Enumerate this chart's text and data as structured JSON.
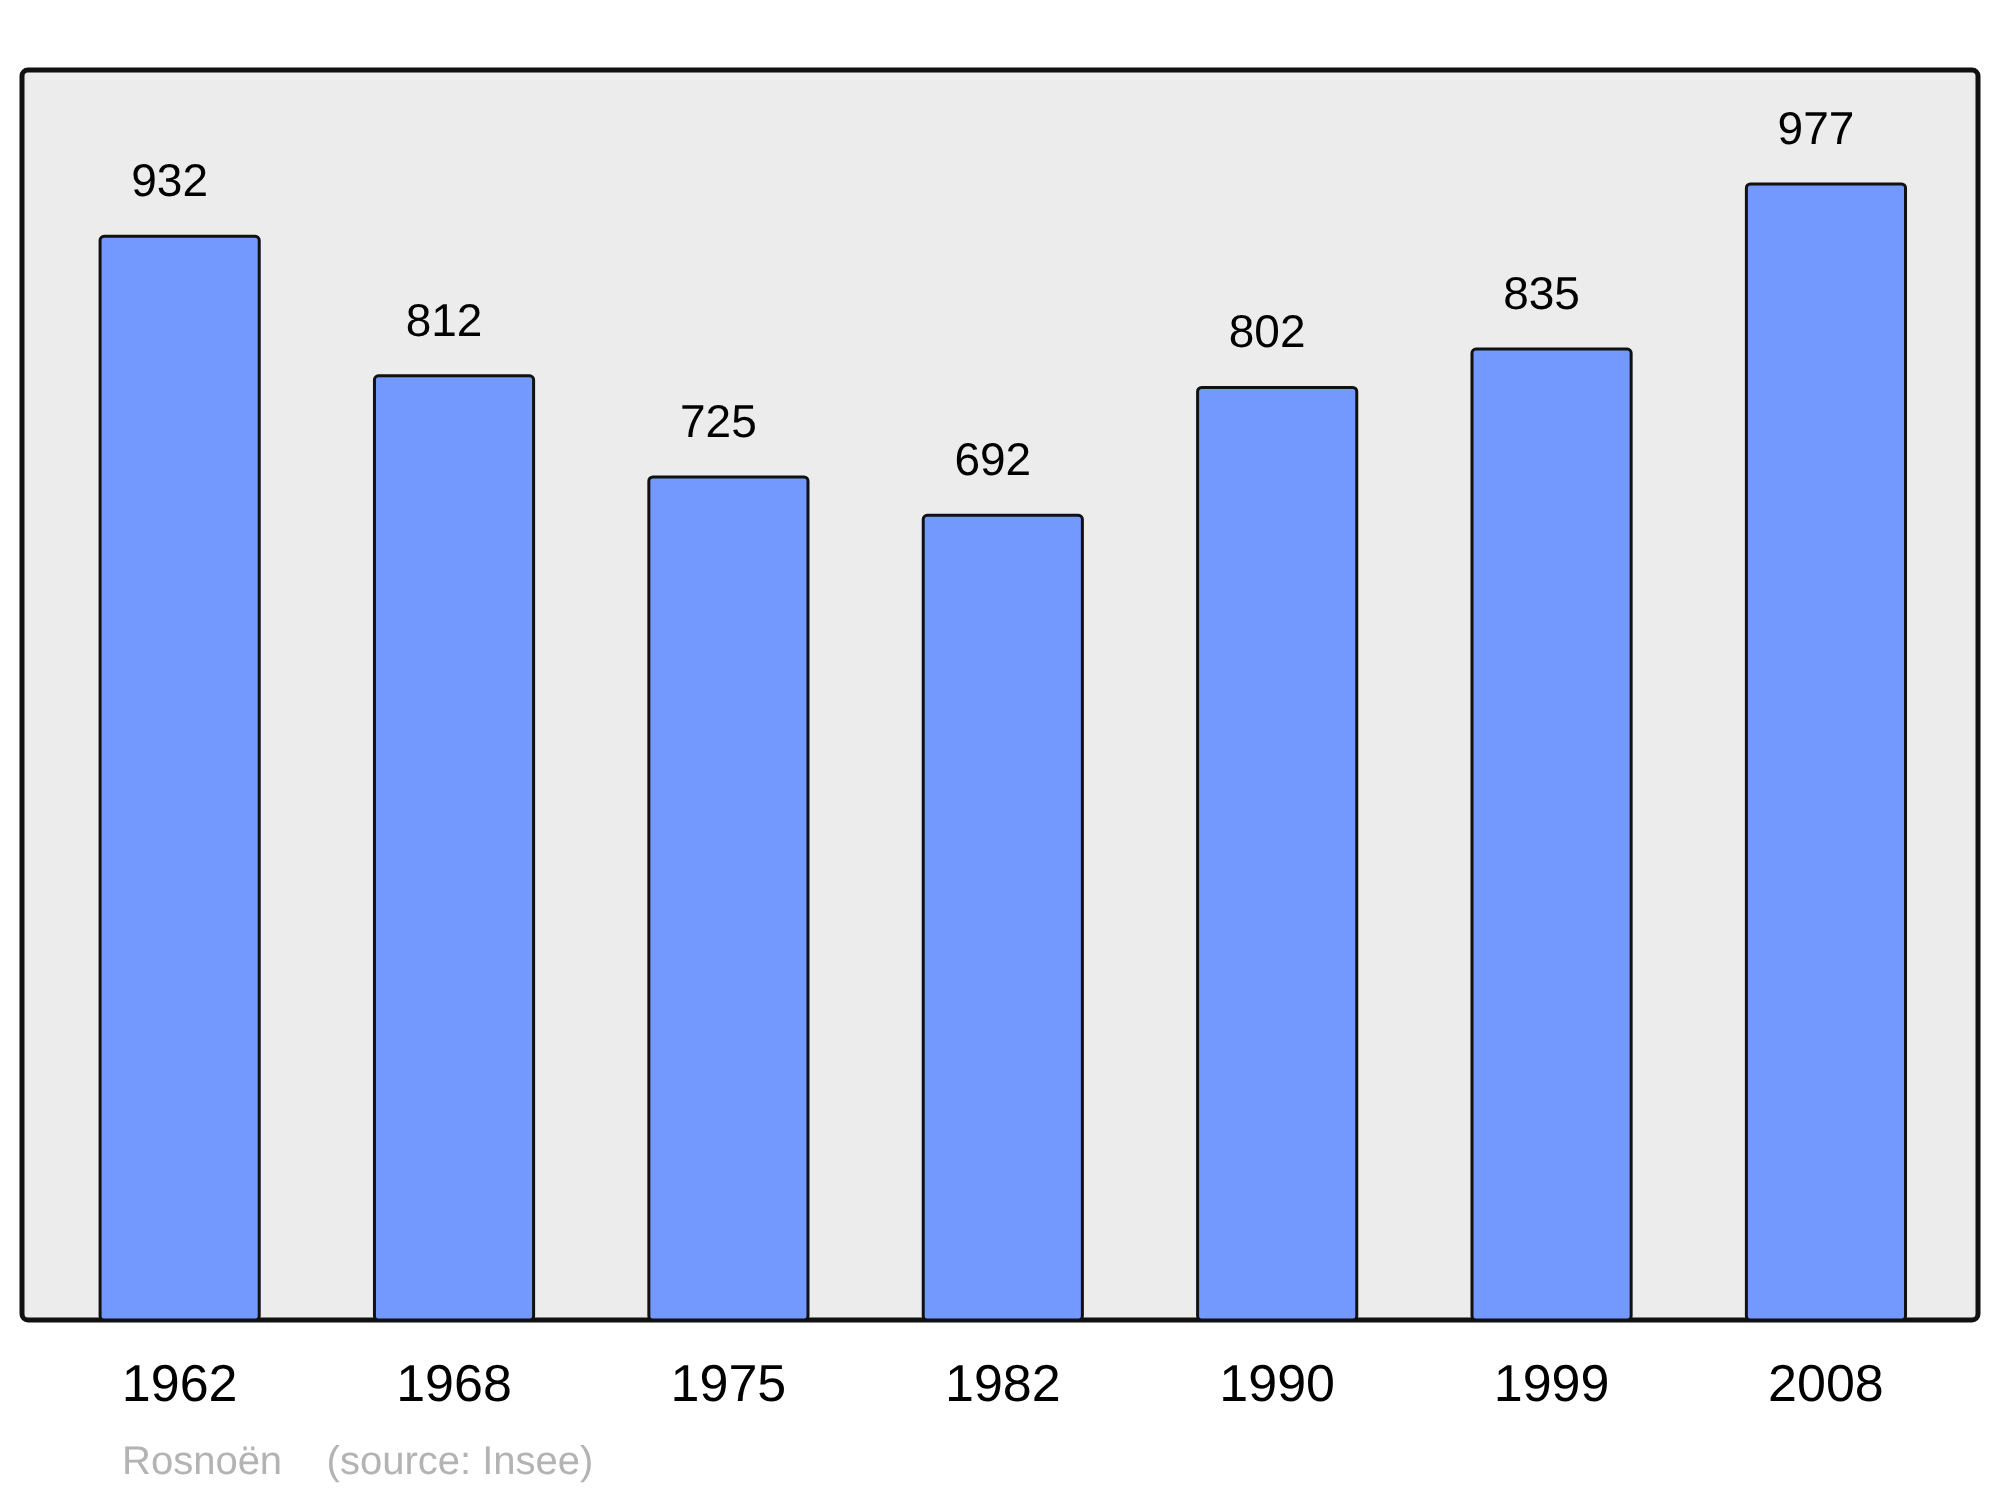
{
  "chart_data": {
    "type": "bar",
    "categories": [
      "1962",
      "1968",
      "1975",
      "1982",
      "1990",
      "1999",
      "2008"
    ],
    "values": [
      932,
      812,
      725,
      692,
      802,
      835,
      977
    ],
    "color": "#7399ff",
    "ylim": [
      0,
      1075
    ],
    "data_labels": true,
    "annotations": [
      "Rosnoën    (source: Insee)"
    ]
  }
}
